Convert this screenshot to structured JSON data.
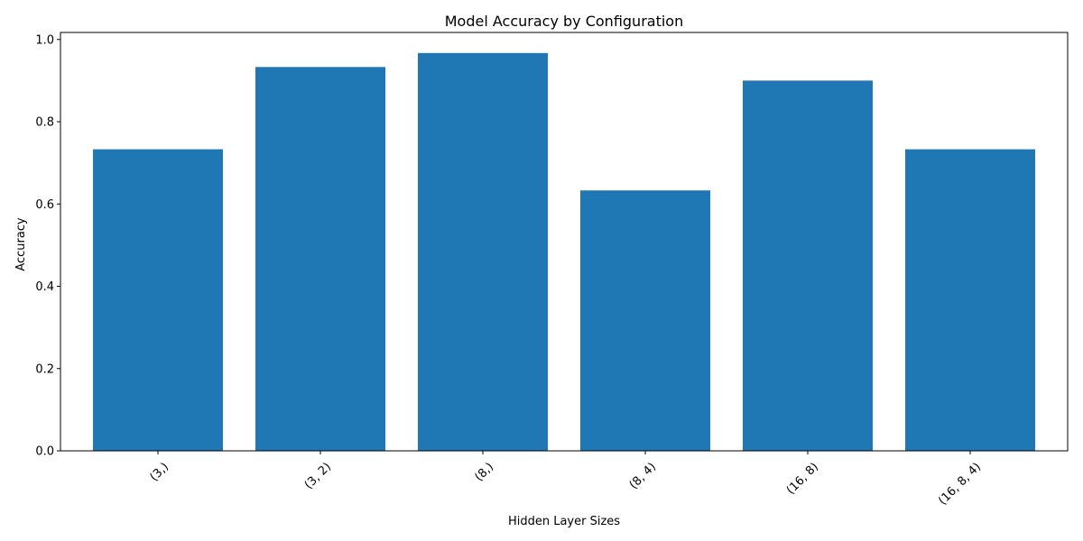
{
  "chart_data": {
    "type": "bar",
    "title": "Model Accuracy by Configuration",
    "xlabel": "Hidden Layer Sizes",
    "ylabel": "Accuracy",
    "categories": [
      "(3,)",
      "(3, 2)",
      "(8,)",
      "(8, 4)",
      "(16, 8)",
      "(16, 8, 4)"
    ],
    "values": [
      0.733,
      0.933,
      0.967,
      0.633,
      0.9,
      0.733
    ],
    "ylim": [
      0,
      1.017
    ],
    "yticks": [
      0.0,
      0.2,
      0.4,
      0.6,
      0.8,
      1.0
    ],
    "ytick_labels": [
      "0.0",
      "0.2",
      "0.4",
      "0.6",
      "0.8",
      "1.0"
    ],
    "grid": false,
    "legend": "none",
    "bar_color": "#1f77b4",
    "xtick_rotation_deg": 45
  }
}
